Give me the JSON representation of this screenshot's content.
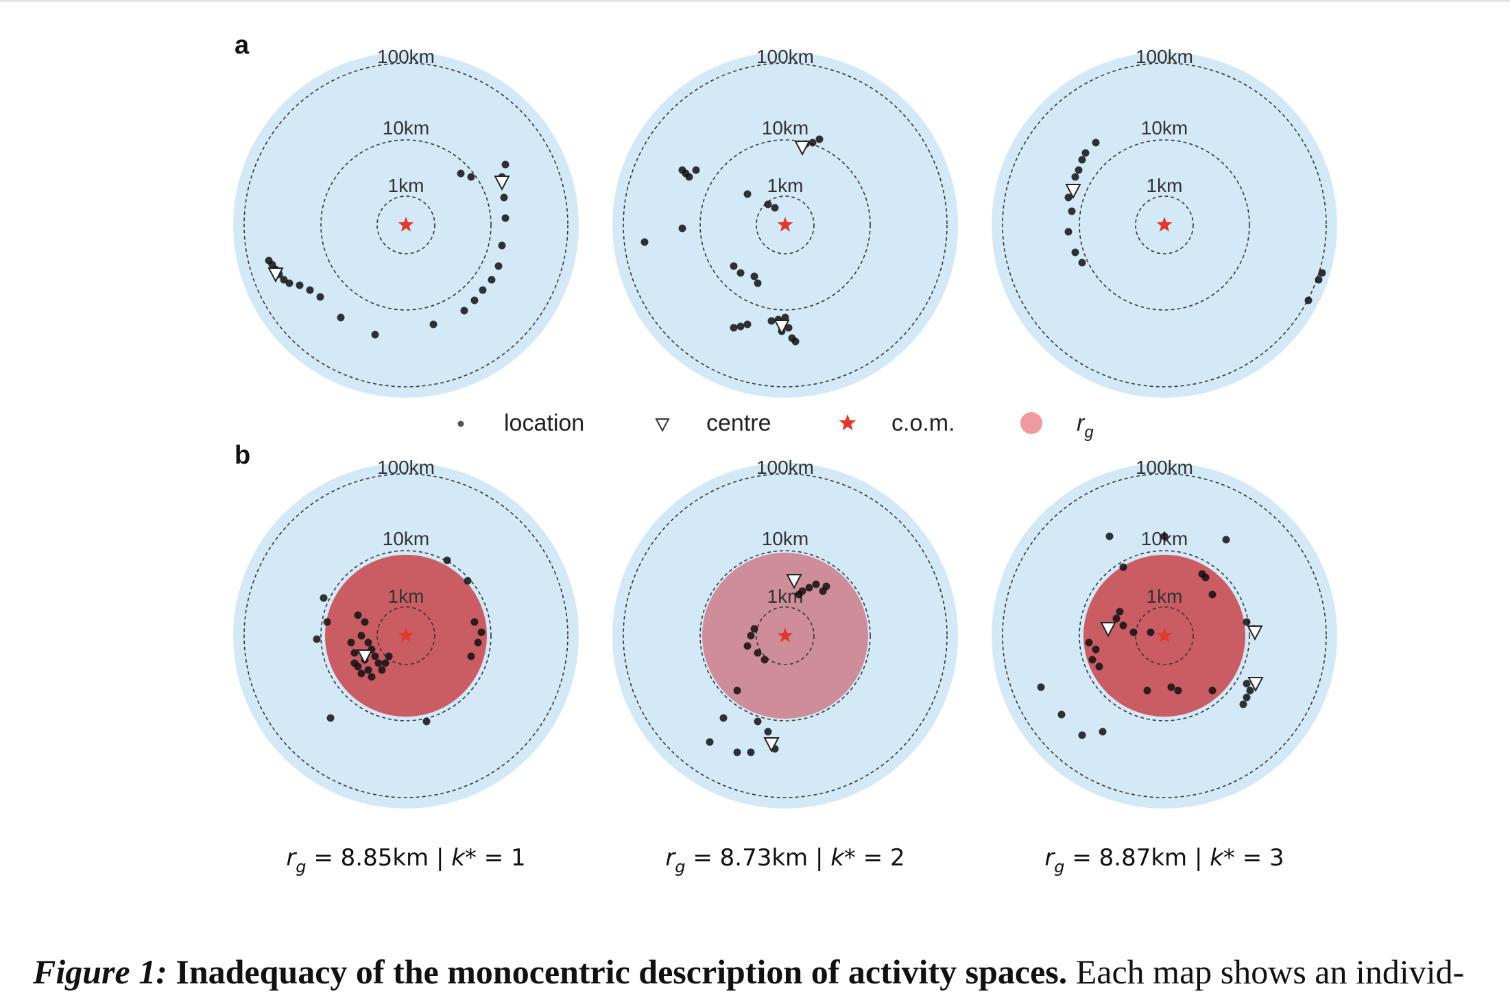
{
  "panel_labels": {
    "a": "a",
    "b": "b"
  },
  "ring_labels": {
    "inner": "1km",
    "middle": "10km",
    "outer": "100km"
  },
  "legend": {
    "location": "location",
    "centre": "centre",
    "com": "c.o.m.",
    "rg": "r",
    "rg_sub": "g"
  },
  "stats": [
    {
      "rg_symbol": "r",
      "rg_sub": "g",
      "text": " = 8.85km | ",
      "k_symbol": "k",
      "k_text": "* = 1"
    },
    {
      "rg_symbol": "r",
      "rg_sub": "g",
      "text": " = 8.73km | ",
      "k_symbol": "k",
      "k_text": "* = 2"
    },
    {
      "rg_symbol": "r",
      "rg_sub": "g",
      "text": " = 8.87km | ",
      "k_symbol": "k",
      "k_text": "* = 3"
    }
  ],
  "caption": {
    "label": "Figure 1:",
    "title": "Inadequacy of the monocentric description of activity spaces.",
    "text": "Each map shows an individ-"
  },
  "colors": {
    "background": "#d4e9f8",
    "land": "#979ba0",
    "location": "#111111",
    "com": "#e03a2f",
    "rg_fill": "#c8434a",
    "ring": "#333333"
  }
}
